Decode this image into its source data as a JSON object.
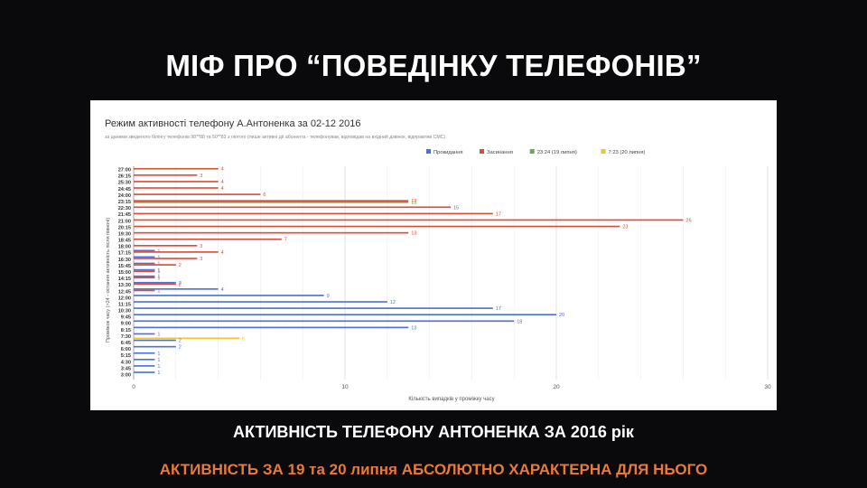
{
  "slide": {
    "title": "МІФ ПРО “ПОВЕДІНКУ ТЕЛЕФОНІВ”",
    "caption_main": "АКТИВНІСТЬ ТЕЛЕФОНУ АНТОНЕНКА ЗА 2016 рік",
    "caption_note": "АКТИВНІСТЬ ЗА  19 та 20 липня АБСОЛЮТНО ХАРАКТЕРНА ДЛЯ НЬОГО"
  },
  "colors": {
    "blue": "#4a72d8",
    "red": "#dd4b39",
    "green": "#6aa84f",
    "yellow": "#f1c232",
    "caption_note": "#e8793c"
  },
  "chart_data": {
    "type": "bar",
    "orientation": "horizontal",
    "title": "Режим активності телефону А.Антоненка за 02-12 2016",
    "subtitle": "за даними зведеного білінгу телефонів 98**88 та 50**83 з лютого  (лише активні дії абонента - телефонував, відповідав на вхідний дзвінок, відправляв СМС)",
    "xlabel": "Кількість випадків у проміжку часу",
    "ylabel": "Проміжок часу (>24 - остання активність після півночі)",
    "xlim": [
      0,
      30
    ],
    "xticks": [
      "0",
      "10",
      "20",
      "30"
    ],
    "grid": true,
    "legend_position": "top-right",
    "legend": [
      {
        "label": "Прокидання",
        "color": "#4a72d8"
      },
      {
        "label": "Засинання",
        "color": "#dd4b39"
      },
      {
        "label": "23:24 (19 липня)",
        "color": "#6aa84f"
      },
      {
        "label": "7:23 (20 липня)",
        "color": "#f1c232"
      }
    ],
    "categories": [
      "27:00",
      "26:15",
      "25:30",
      "24:45",
      "24:00",
      "23:15",
      "22:30",
      "21:45",
      "21:00",
      "20:15",
      "19:30",
      "18:45",
      "18:00",
      "17:15",
      "16:30",
      "15:45",
      "15:00",
      "14:15",
      "13:30",
      "12:45",
      "12:00",
      "11:15",
      "10:30",
      "9:45",
      "9:00",
      "8:15",
      "7:30",
      "6:45",
      "6:00",
      "5:15",
      "4:30",
      "3:45",
      "3:00"
    ],
    "series": [
      {
        "name": "Прокидання",
        "color": "#4a72d8",
        "values": [
          0,
          0,
          0,
          0,
          0,
          0,
          0,
          0,
          0,
          0,
          0,
          0,
          0,
          1,
          1,
          1,
          1,
          1,
          2,
          4,
          9,
          12,
          17,
          20,
          18,
          13,
          1,
          2,
          2,
          1,
          1,
          1,
          1
        ]
      },
      {
        "name": "Засинання",
        "color": "#dd4b39",
        "values": [
          4,
          3,
          4,
          4,
          6,
          13,
          15,
          17,
          26,
          23,
          13,
          7,
          3,
          4,
          3,
          2,
          1,
          1,
          2,
          1,
          0,
          0,
          0,
          0,
          0,
          0,
          0,
          0,
          0,
          0,
          0,
          0,
          0
        ]
      },
      {
        "name": "23:24 (19 липня)",
        "color": "#6aa84f",
        "values": [
          0,
          0,
          0,
          0,
          0,
          13,
          0,
          0,
          0,
          0,
          0,
          0,
          0,
          0,
          0,
          0,
          0,
          0,
          0,
          0,
          0,
          0,
          0,
          0,
          0,
          0,
          0,
          0,
          0,
          0,
          0,
          0,
          0
        ]
      },
      {
        "name": "7:23 (20 липня)",
        "color": "#f1c232",
        "values": [
          0,
          0,
          0,
          0,
          0,
          0,
          0,
          0,
          0,
          0,
          0,
          0,
          0,
          0,
          0,
          0,
          0,
          0,
          0,
          0,
          0,
          0,
          0,
          0,
          0,
          0,
          5,
          0,
          0,
          0,
          0,
          0,
          0
        ]
      }
    ]
  }
}
